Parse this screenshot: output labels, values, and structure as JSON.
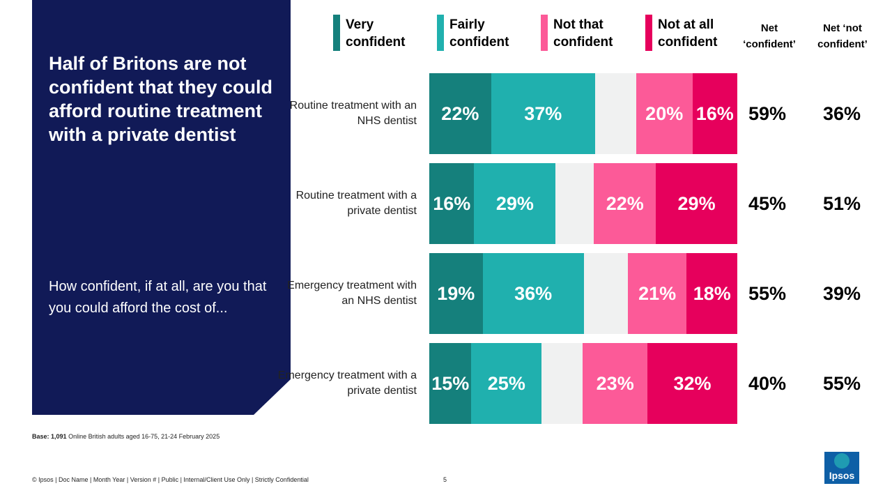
{
  "title": "Half of Britons are not confident that they could afford routine treatment with a private dentist",
  "question": "How confident, if at all, are you that you could afford the cost of...",
  "base": {
    "label": "Base: 1,091",
    "text": "Online British adults aged 16-75, 21-24 February 2025"
  },
  "footer": "© Ipsos | Doc Name | Month Year | Version # | Public | Internal/Client Use Only | Strictly Confidential",
  "page_number": "5",
  "logo_text": "Ipsos",
  "colors": {
    "very_confident": "#15807c",
    "fairly_confident": "#20b0ae",
    "not_that_confident": "#fc5a98",
    "not_at_all_confident": "#e6005c",
    "panel": "#111a57",
    "gap": "#f0f1f1"
  },
  "chart_data": {
    "type": "bar",
    "orientation": "horizontal-stacked-diverging",
    "categories": [
      "Routine treatment with an NHS dentist",
      "Routine treatment with a private dentist",
      "Emergency treatment with an NHS dentist",
      "Emergency treatment with a private dentist"
    ],
    "series": [
      {
        "name": "Very confident",
        "values": [
          22,
          16,
          19,
          15
        ]
      },
      {
        "name": "Fairly confident",
        "values": [
          37,
          29,
          36,
          25
        ]
      },
      {
        "name": "Not that confident",
        "values": [
          20,
          22,
          21,
          23
        ]
      },
      {
        "name": "Not at all confident",
        "values": [
          16,
          29,
          18,
          32
        ]
      }
    ],
    "net_headers": [
      "Net ‘confident’",
      "Net ‘not confident’"
    ],
    "net_confident": [
      59,
      45,
      55,
      40
    ],
    "net_not_confident": [
      36,
      51,
      39,
      55
    ],
    "unit": "%",
    "xlim": [
      0,
      100
    ]
  }
}
